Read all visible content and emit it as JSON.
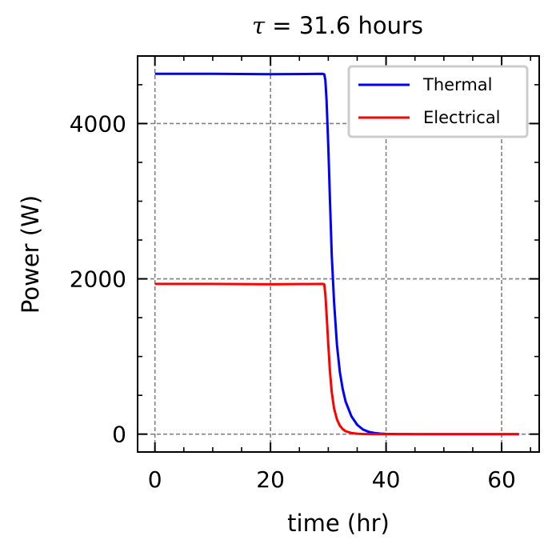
{
  "chart_data": {
    "type": "line",
    "title": "τ = 31.6 hours",
    "title_parts": {
      "symbol": "τ",
      "rest": " = 31.6 hours"
    },
    "xlabel": "time (hr)",
    "ylabel": "Power (W)",
    "xlim": [
      -3,
      66.5
    ],
    "ylim": [
      -230,
      4870
    ],
    "xticks": [
      0,
      20,
      40,
      60
    ],
    "xtick_labels": [
      "0",
      "20",
      "40",
      "60"
    ],
    "yticks": [
      0,
      2000,
      4000
    ],
    "ytick_labels": [
      "0",
      "2000",
      "4000"
    ],
    "x_minor_step": 5,
    "y_minor_step": 500,
    "grid": true,
    "legend_position": "top-right",
    "series": [
      {
        "name": "Thermal",
        "color": "#0000ff",
        "x": [
          0,
          10,
          20,
          29.0,
          29.3,
          29.5,
          29.7,
          30.0,
          30.3,
          30.6,
          31.0,
          31.5,
          32.0,
          32.5,
          33.0,
          34.0,
          35.0,
          36.0,
          37.0,
          38.0,
          39.0,
          40.0,
          42.0,
          45.0,
          50.0,
          55.0,
          60.0,
          63.0
        ],
        "y": [
          4640,
          4640,
          4635,
          4640,
          4635,
          4560,
          4300,
          3700,
          3000,
          2300,
          1700,
          1150,
          800,
          580,
          420,
          230,
          120,
          60,
          30,
          15,
          7,
          3,
          1,
          0,
          0,
          0,
          0,
          0
        ]
      },
      {
        "name": "Electrical",
        "color": "#ff0000",
        "x": [
          0,
          10,
          20,
          29.0,
          29.3,
          29.5,
          29.7,
          30.0,
          30.3,
          30.6,
          31.0,
          31.5,
          32.0,
          32.5,
          33.0,
          34.0,
          35.0,
          36.0,
          37.0,
          38.0,
          40.0,
          45.0,
          50.0,
          55.0,
          60.0,
          63.0
        ],
        "y": [
          1935,
          1935,
          1930,
          1935,
          1930,
          1800,
          1550,
          1150,
          800,
          540,
          330,
          190,
          110,
          65,
          38,
          15,
          6,
          2,
          1,
          0,
          0,
          0,
          0,
          0,
          0,
          0
        ]
      }
    ]
  }
}
